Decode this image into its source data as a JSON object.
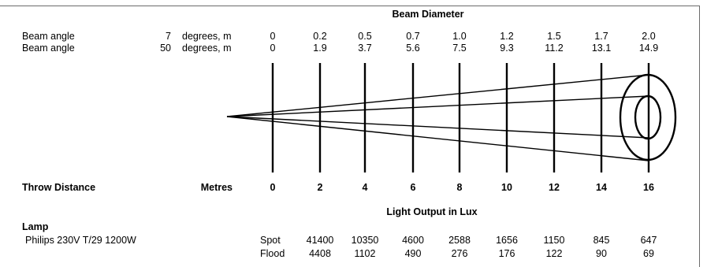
{
  "header": {
    "beam_diameter_title": "Beam Diameter"
  },
  "beam_rows": [
    {
      "label": "Beam angle",
      "angle": "7",
      "unit": "degrees, m",
      "values": [
        "0",
        "0.2",
        "0.5",
        "0.7",
        "1.0",
        "1.2",
        "1.5",
        "1.7",
        "2.0"
      ]
    },
    {
      "label": "Beam angle",
      "angle": "50",
      "unit": "degrees, m",
      "values": [
        "0",
        "1.9",
        "3.7",
        "5.6",
        "7.5",
        "9.3",
        "11.2",
        "13.1",
        "14.9"
      ]
    }
  ],
  "throw": {
    "label": "Throw Distance",
    "unit": "Metres",
    "distances": [
      "0",
      "2",
      "4",
      "6",
      "8",
      "10",
      "12",
      "14",
      "16"
    ]
  },
  "light_output": {
    "title": "Light Output in Lux"
  },
  "lamp": {
    "heading": "Lamp",
    "name": "Philips 230V T/29 1200W",
    "rows": [
      {
        "mode": "Spot",
        "values": [
          "41400",
          "10350",
          "4600",
          "2588",
          "1656",
          "1150",
          "845",
          "647"
        ]
      },
      {
        "mode": "Flood",
        "values": [
          "4408",
          "1102",
          "490",
          "276",
          "176",
          "122",
          "90",
          "69"
        ]
      }
    ]
  },
  "colors": {
    "line": "#000000",
    "frame": "#6b6b6b"
  }
}
